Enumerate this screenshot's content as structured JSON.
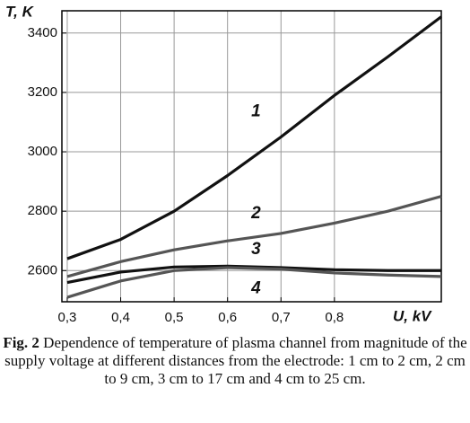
{
  "chart_data": {
    "type": "line",
    "y_label": "T, K",
    "x_label": "U, kV",
    "x": [
      0.3,
      0.4,
      0.5,
      0.6,
      0.7,
      0.8,
      0.9,
      1.0
    ],
    "series": [
      {
        "name": "1",
        "color": "#111111",
        "values": [
          2640,
          2705,
          2800,
          2920,
          3050,
          3190,
          3320,
          3455
        ]
      },
      {
        "name": "2",
        "color": "#555555",
        "values": [
          2580,
          2630,
          2670,
          2700,
          2725,
          2760,
          2800,
          2850
        ]
      },
      {
        "name": "3",
        "color": "#111111",
        "values": [
          2560,
          2595,
          2612,
          2615,
          2610,
          2603,
          2600,
          2600
        ]
      },
      {
        "name": "4",
        "color": "#555555",
        "values": [
          2510,
          2565,
          2600,
          2610,
          2605,
          2592,
          2585,
          2580
        ]
      }
    ],
    "xlim": [
      0.29,
      1.0
    ],
    "ylim": [
      2495,
      3475
    ],
    "xticks": [
      {
        "value": 0.3,
        "label": "0,3"
      },
      {
        "value": 0.4,
        "label": "0,4"
      },
      {
        "value": 0.5,
        "label": "0,5"
      },
      {
        "value": 0.6,
        "label": "0,6"
      },
      {
        "value": 0.7,
        "label": "0,7"
      },
      {
        "value": 0.8,
        "label": "0,8"
      }
    ],
    "yticks": [
      2600,
      2800,
      3000,
      3200,
      3400
    ],
    "grid": true,
    "caption": {
      "label": "Fig. 2",
      "text": "Dependence of temperature of plasma channel from magnitude of the supply voltage at different distances from the electrode: 1 cm to 2 cm, 2 cm to 9 cm, 3 cm to 17 cm and 4 cm to 25 cm."
    }
  }
}
